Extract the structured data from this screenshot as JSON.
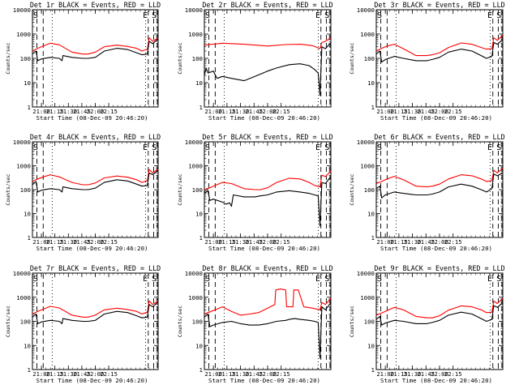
{
  "chart_data": [
    {
      "type": "line",
      "title": "Det 1r BLACK = Events, RED = LLD",
      "xlabel": "Start Time (08-Dec-09 20:46:20)",
      "ylabel": "Counts/sec",
      "y_scale": "log",
      "ylim": [
        1,
        10000
      ],
      "xtick_labels": [
        "21:00",
        "21:15",
        "21:30",
        "21:45",
        "22:00",
        "22:15"
      ],
      "ytick_labels": [
        "1",
        "10",
        "100",
        "1000",
        "10000"
      ],
      "markers": [
        "S",
        "E",
        "S"
      ],
      "series": [
        {
          "color": "#ff0000",
          "x": [
            0,
            6,
            12,
            20,
            30,
            44,
            56,
            62,
            70,
            80,
            94,
            106,
            116,
            122,
            128,
            130,
            134,
            138,
            140
          ],
          "y": [
            200,
            260,
            320,
            420,
            360,
            180,
            150,
            150,
            180,
            300,
            350,
            310,
            260,
            200,
            240,
            700,
            500,
            620,
            700
          ]
        },
        {
          "color": "#000000",
          "x": [
            0,
            4,
            6,
            10,
            20,
            30,
            33,
            34,
            44,
            56,
            62,
            70,
            80,
            94,
            106,
            116,
            122,
            128,
            130,
            134,
            138,
            140
          ],
          "y": [
            150,
            200,
            80,
            95,
            110,
            100,
            80,
            130,
            110,
            100,
            100,
            110,
            200,
            260,
            230,
            170,
            140,
            150,
            500,
            400,
            550,
            600
          ]
        }
      ]
    },
    {
      "type": "line",
      "title": "Det 2r BLACK = Events, RED = LLD",
      "xlabel": "Start Time (08-Dec-09 20:46:20)",
      "ylabel": "Counts/sec",
      "y_scale": "log",
      "ylim": [
        1,
        10000
      ],
      "xtick_labels": [
        "21:00",
        "21:15",
        "21:30",
        "21:45",
        "22:00",
        "22:15"
      ],
      "ytick_labels": [
        "1",
        "10",
        "100",
        "1000",
        "10000"
      ],
      "markers": [
        "S",
        "E",
        "S"
      ],
      "series": [
        {
          "color": "#ff0000",
          "x": [
            0,
            20,
            44,
            70,
            90,
            106,
            120,
            128,
            130,
            134,
            140
          ],
          "y": [
            350,
            420,
            380,
            320,
            370,
            380,
            330,
            250,
            450,
            500,
            700
          ]
        },
        {
          "color": "#000000",
          "x": [
            0,
            2,
            4,
            10,
            14,
            20,
            30,
            44,
            56,
            70,
            80,
            94,
            106,
            116,
            122,
            126,
            128,
            130,
            134,
            140
          ],
          "y": [
            20,
            40,
            25,
            30,
            15,
            18,
            15,
            12,
            18,
            30,
            40,
            55,
            60,
            50,
            35,
            25,
            3,
            300,
            250,
            450
          ]
        }
      ]
    },
    {
      "type": "line",
      "title": "Det 3r BLACK = Events, RED = LLD",
      "xlabel": "Start Time (08-Dec-09 20:46:20)",
      "ylabel": "Counts/sec",
      "y_scale": "log",
      "ylim": [
        1,
        10000
      ],
      "xtick_labels": [
        "21:00",
        "21:15",
        "21:30",
        "21:45",
        "22:00",
        "22:15"
      ],
      "ytick_labels": [
        "1",
        "10",
        "100",
        "1000",
        "10000"
      ],
      "markers": [
        "S",
        "E",
        "S"
      ],
      "series": [
        {
          "color": "#ff0000",
          "x": [
            0,
            6,
            12,
            20,
            30,
            44,
            56,
            62,
            70,
            80,
            94,
            106,
            116,
            122,
            128,
            130,
            134,
            140
          ],
          "y": [
            200,
            260,
            320,
            380,
            250,
            130,
            130,
            140,
            170,
            280,
            430,
            380,
            280,
            240,
            250,
            700,
            550,
            900
          ]
        },
        {
          "color": "#000000",
          "x": [
            0,
            4,
            6,
            10,
            20,
            30,
            44,
            56,
            62,
            70,
            80,
            94,
            106,
            116,
            122,
            128,
            130,
            134,
            140
          ],
          "y": [
            150,
            200,
            70,
            90,
            120,
            100,
            80,
            80,
            90,
            110,
            180,
            240,
            200,
            130,
            100,
            120,
            450,
            380,
            600
          ]
        }
      ]
    },
    {
      "type": "line",
      "title": "Det 4r BLACK = Events, RED = LLD",
      "xlabel": "Start Time (08-Dec-09 20:46:20)",
      "ylabel": "Counts/sec",
      "y_scale": "log",
      "ylim": [
        1,
        10000
      ],
      "xtick_labels": [
        "21:00",
        "21:15",
        "21:30",
        "21:45",
        "22:00",
        "22:15"
      ],
      "ytick_labels": [
        "1",
        "10",
        "100",
        "1000",
        "10000"
      ],
      "markers": [
        "S",
        "E",
        "S"
      ],
      "series": [
        {
          "color": "#ff0000",
          "x": [
            0,
            6,
            12,
            20,
            30,
            44,
            56,
            62,
            70,
            80,
            94,
            106,
            116,
            122,
            128,
            130,
            134,
            138,
            140
          ],
          "y": [
            220,
            280,
            340,
            420,
            340,
            200,
            160,
            160,
            190,
            310,
            370,
            330,
            260,
            200,
            240,
            700,
            500,
            650,
            700
          ]
        },
        {
          "color": "#000000",
          "x": [
            0,
            4,
            6,
            10,
            20,
            30,
            33,
            34,
            44,
            56,
            62,
            70,
            80,
            94,
            106,
            116,
            122,
            128,
            130,
            134,
            138,
            140
          ],
          "y": [
            160,
            220,
            80,
            95,
            110,
            100,
            80,
            130,
            110,
            100,
            100,
            115,
            200,
            260,
            230,
            170,
            140,
            150,
            500,
            420,
            560,
            620
          ]
        }
      ]
    },
    {
      "type": "line",
      "title": "Det 5r BLACK = Events, RED = LLD",
      "xlabel": "Start Time (08-Dec-09 20:46:20)",
      "ylabel": "Counts/sec",
      "y_scale": "log",
      "ylim": [
        1,
        10000
      ],
      "xtick_labels": [
        "21:00",
        "21:15",
        "21:30",
        "21:45",
        "22:00",
        "22:15"
      ],
      "ytick_labels": [
        "1",
        "10",
        "100",
        "1000",
        "10000"
      ],
      "markers": [
        "S",
        "E",
        "S"
      ],
      "series": [
        {
          "color": "#ff0000",
          "x": [
            0,
            6,
            12,
            20,
            30,
            44,
            56,
            62,
            70,
            80,
            94,
            106,
            116,
            122,
            128,
            130,
            134,
            140
          ],
          "y": [
            100,
            120,
            150,
            200,
            180,
            110,
            100,
            100,
            120,
            200,
            300,
            280,
            200,
            150,
            130,
            400,
            350,
            600
          ]
        },
        {
          "color": "#000000",
          "x": [
            0,
            4,
            6,
            10,
            20,
            24,
            28,
            30,
            32,
            44,
            56,
            62,
            70,
            80,
            94,
            106,
            116,
            122,
            126,
            128,
            130,
            134,
            140
          ],
          "y": [
            70,
            90,
            35,
            40,
            30,
            25,
            28,
            20,
            60,
            50,
            50,
            55,
            60,
            80,
            90,
            80,
            70,
            60,
            55,
            3,
            200,
            180,
            350
          ]
        }
      ]
    },
    {
      "type": "line",
      "title": "Det 6r BLACK = Events, RED = LLD",
      "xlabel": "Start Time (08-Dec-09 20:46:20)",
      "ylabel": "Counts/sec",
      "y_scale": "log",
      "ylim": [
        1,
        10000
      ],
      "xtick_labels": [
        "21:00",
        "21:15",
        "21:30",
        "21:45",
        "22:00",
        "22:15"
      ],
      "ytick_labels": [
        "1",
        "10",
        "100",
        "1000",
        "10000"
      ],
      "markers": [
        "S",
        "E",
        "S"
      ],
      "series": [
        {
          "color": "#ff0000",
          "x": [
            0,
            6,
            12,
            20,
            30,
            44,
            56,
            62,
            70,
            80,
            94,
            106,
            116,
            122,
            128,
            130,
            134,
            140
          ],
          "y": [
            180,
            220,
            280,
            360,
            260,
            140,
            130,
            140,
            170,
            280,
            420,
            380,
            280,
            220,
            240,
            650,
            500,
            800
          ]
        },
        {
          "color": "#000000",
          "x": [
            0,
            4,
            6,
            10,
            20,
            30,
            44,
            56,
            62,
            70,
            80,
            94,
            106,
            116,
            122,
            128,
            130,
            134,
            140
          ],
          "y": [
            110,
            140,
            45,
            60,
            80,
            70,
            60,
            60,
            65,
            80,
            130,
            170,
            140,
            100,
            80,
            110,
            450,
            380,
            500
          ]
        }
      ]
    },
    {
      "type": "line",
      "title": "Det 7r BLACK = Events, RED = LLD",
      "xlabel": "Start Time (08-Dec-09 20:46:20)",
      "ylabel": "Counts/sec",
      "y_scale": "log",
      "ylim": [
        1,
        10000
      ],
      "xtick_labels": [
        "21:00",
        "21:15",
        "21:30",
        "21:45",
        "22:00",
        "22:15"
      ],
      "ytick_labels": [
        "1",
        "10",
        "100",
        "1000",
        "10000"
      ],
      "markers": [
        "S",
        "E",
        "S"
      ],
      "series": [
        {
          "color": "#ff0000",
          "x": [
            0,
            6,
            12,
            20,
            30,
            44,
            56,
            62,
            70,
            80,
            94,
            106,
            116,
            122,
            128,
            130,
            134,
            138,
            140
          ],
          "y": [
            200,
            260,
            320,
            420,
            360,
            180,
            150,
            150,
            180,
            300,
            350,
            310,
            260,
            200,
            240,
            700,
            500,
            620,
            700
          ]
        },
        {
          "color": "#000000",
          "x": [
            0,
            4,
            6,
            10,
            20,
            30,
            33,
            34,
            44,
            56,
            62,
            70,
            80,
            94,
            106,
            116,
            122,
            128,
            130,
            134,
            138,
            140
          ],
          "y": [
            150,
            200,
            80,
            95,
            110,
            100,
            80,
            130,
            110,
            100,
            100,
            110,
            200,
            260,
            230,
            170,
            140,
            150,
            500,
            400,
            550,
            600
          ]
        }
      ]
    },
    {
      "type": "line",
      "title": "Det 8r BLACK = Events, RED = LLD",
      "xlabel": "Start Time (08-Dec-09 20:46:20)",
      "ylabel": "Counts/sec",
      "y_scale": "log",
      "ylim": [
        1,
        10000
      ],
      "xtick_labels": [
        "21:00",
        "21:15",
        "21:30",
        "21:45",
        "22:00",
        "22:15"
      ],
      "ytick_labels": [
        "1",
        "10",
        "100",
        "1000",
        "10000"
      ],
      "markers": [
        "S",
        "E",
        "S"
      ],
      "series": [
        {
          "color": "#ff0000",
          "x": [
            0,
            10,
            20,
            30,
            40,
            50,
            60,
            70,
            78,
            79,
            84,
            90,
            91,
            98,
            99,
            104,
            110,
            120,
            128,
            130,
            134,
            140
          ],
          "y": [
            200,
            280,
            400,
            260,
            180,
            200,
            230,
            350,
            500,
            2000,
            2200,
            2000,
            400,
            400,
            2000,
            2000,
            400,
            350,
            300,
            600,
            500,
            900
          ]
        },
        {
          "color": "#000000",
          "x": [
            0,
            4,
            6,
            10,
            20,
            30,
            40,
            50,
            60,
            70,
            80,
            90,
            94,
            100,
            106,
            116,
            122,
            126,
            128,
            130,
            134,
            140
          ],
          "y": [
            150,
            200,
            60,
            70,
            90,
            100,
            80,
            70,
            70,
            80,
            100,
            110,
            120,
            130,
            120,
            110,
            100,
            90,
            3,
            400,
            300,
            600
          ]
        }
      ]
    },
    {
      "type": "line",
      "title": "Det 9r BLACK = Events, RED = LLD",
      "xlabel": "Start Time (08-Dec-09 20:46:20)",
      "ylabel": "Counts/sec",
      "y_scale": "log",
      "ylim": [
        1,
        10000
      ],
      "xtick_labels": [
        "21:00",
        "21:15",
        "21:30",
        "21:45",
        "22:00",
        "22:15"
      ],
      "ytick_labels": [
        "1",
        "10",
        "100",
        "1000",
        "10000"
      ],
      "markers": [
        "S",
        "E",
        "S"
      ],
      "series": [
        {
          "color": "#ff0000",
          "x": [
            0,
            6,
            12,
            20,
            30,
            44,
            56,
            62,
            70,
            80,
            94,
            106,
            116,
            122,
            128,
            130,
            134,
            140
          ],
          "y": [
            180,
            220,
            280,
            380,
            300,
            160,
            140,
            140,
            170,
            290,
            440,
            400,
            300,
            230,
            240,
            700,
            550,
            900
          ]
        },
        {
          "color": "#000000",
          "x": [
            0,
            4,
            6,
            10,
            20,
            30,
            44,
            56,
            62,
            70,
            80,
            94,
            106,
            116,
            122,
            128,
            130,
            134,
            140
          ],
          "y": [
            120,
            160,
            70,
            85,
            110,
            100,
            80,
            80,
            90,
            110,
            180,
            240,
            200,
            130,
            100,
            120,
            450,
            380,
            600
          ]
        }
      ]
    }
  ]
}
